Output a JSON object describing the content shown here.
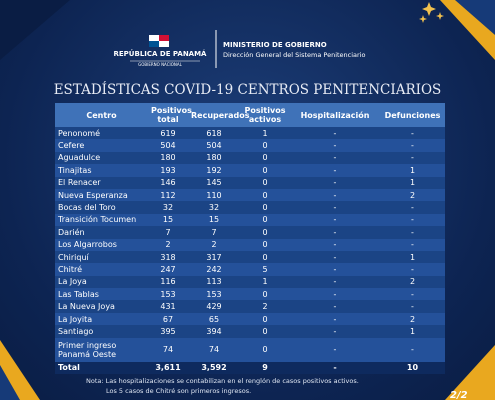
{
  "header": {
    "country": "REPÚBLICA DE PANAMÁ",
    "government": "GOBIERNO NACIONAL",
    "ministry": "MINISTERIO DE GOBIERNO",
    "department": "Dirección General del Sistema Penitenciario"
  },
  "title": "ESTADÍSTICAS COVID-19 CENTROS PENITENCIARIOS",
  "table": {
    "columns": [
      "Centro",
      "Positivos total",
      "Recuperados",
      "Positivos activos",
      "Hospitalización",
      "Defunciones"
    ],
    "rows": [
      [
        "Penonomé",
        "619",
        "618",
        "1",
        "-",
        "-"
      ],
      [
        "Cefere",
        "504",
        "504",
        "0",
        "-",
        "-"
      ],
      [
        "Aguadulce",
        "180",
        "180",
        "0",
        "-",
        "-"
      ],
      [
        "Tinajitas",
        "193",
        "192",
        "0",
        "-",
        "1"
      ],
      [
        "El Renacer",
        "146",
        "145",
        "0",
        "-",
        "1"
      ],
      [
        "Nueva Esperanza",
        "112",
        "110",
        "0",
        "-",
        "2"
      ],
      [
        "Bocas del Toro",
        "32",
        "32",
        "0",
        "-",
        "-"
      ],
      [
        "Transición Tocumen",
        "15",
        "15",
        "0",
        "-",
        "-"
      ],
      [
        "Darién",
        "7",
        "7",
        "0",
        "-",
        "-"
      ],
      [
        "Los Algarrobos",
        "2",
        "2",
        "0",
        "-",
        "-"
      ],
      [
        "Chiriquí",
        "318",
        "317",
        "0",
        "-",
        "1"
      ],
      [
        "Chitré",
        "247",
        "242",
        "5",
        "-",
        "-"
      ],
      [
        "La Joya",
        "116",
        "113",
        "1",
        "-",
        "2"
      ],
      [
        "Las Tablas",
        "153",
        "153",
        "0",
        "-",
        "-"
      ],
      [
        "La Nueva Joya",
        "431",
        "429",
        "2",
        "-",
        "-"
      ],
      [
        "La Joyita",
        "67",
        "65",
        "0",
        "-",
        "2"
      ],
      [
        "Santiago",
        "395",
        "394",
        "0",
        "-",
        "1"
      ],
      [
        "Primer ingreso Panamá Oeste",
        "74",
        "74",
        "0",
        "-",
        "-"
      ]
    ],
    "total": [
      "Total",
      "3,611",
      "3,592",
      "9",
      "-",
      "10"
    ]
  },
  "notes": [
    "Nota: Las hospitalizaciones se contabilizan en el renglón de casos positivos activos.",
    "Los 5 casos de Chitré son primeros ingresos."
  ],
  "page": "2/2"
}
